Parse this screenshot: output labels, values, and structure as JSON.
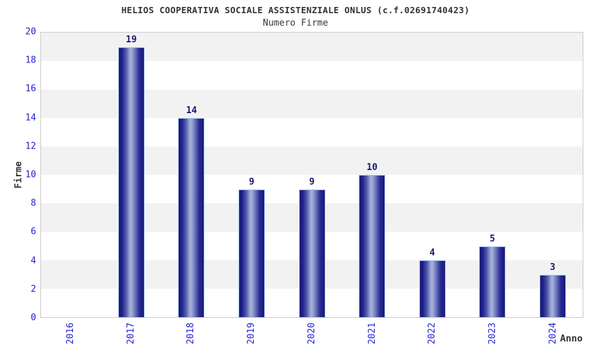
{
  "header": {
    "title": "HELIOS COOPERATIVA SOCIALE ASSISTENZIALE ONLUS (c.f.02691740423)",
    "subtitle": "Numero Firme"
  },
  "chart_data": {
    "type": "bar",
    "title": "HELIOS COOPERATIVA SOCIALE ASSISTENZIALE ONLUS (c.f.02691740423)",
    "subtitle": "Numero Firme",
    "xlabel": "Anno",
    "ylabel": "Firme",
    "categories": [
      "2016",
      "2017",
      "2018",
      "2019",
      "2020",
      "2021",
      "2022",
      "2023",
      "2024"
    ],
    "values": [
      0,
      19,
      14,
      9,
      9,
      10,
      4,
      5,
      3
    ],
    "ylim": [
      0,
      20
    ],
    "yticks": [
      0,
      2,
      4,
      6,
      8,
      10,
      12,
      14,
      16,
      18,
      20
    ],
    "grid": "alternating horizontal bands every 2 units",
    "legend": "none"
  },
  "colors": {
    "tick_label_blue": "#2424cc",
    "value_label_navy": "#191970",
    "title_gray": "#333333",
    "band_gray": "#f2f2f2",
    "plot_border": "#cccccc",
    "bar_dark": "#18187a",
    "bar_highlight": "#aab3d9",
    "bar_border": "#a3c6ee"
  }
}
